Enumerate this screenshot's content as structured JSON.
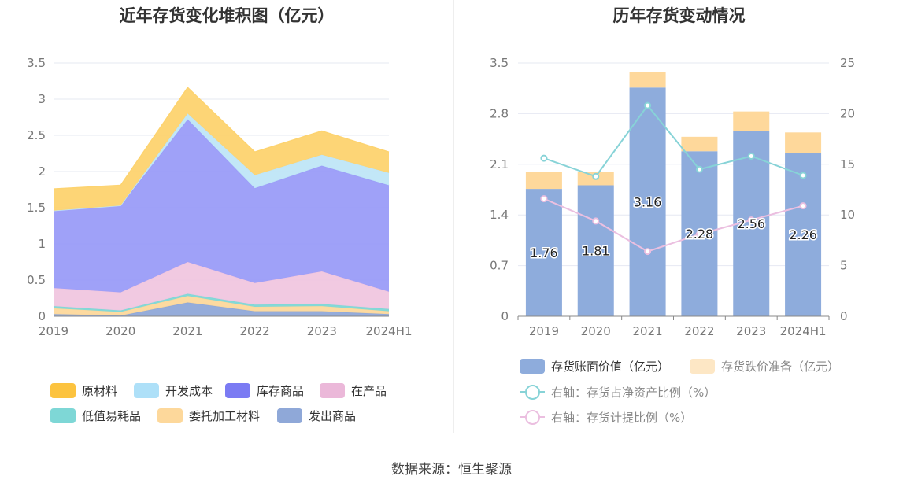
{
  "source_text": "数据来源：恒生聚源",
  "chart_data": [
    {
      "type": "area",
      "stacked": true,
      "title": "近年存货变化堆积图（亿元）",
      "categories": [
        "2019",
        "2020",
        "2021",
        "2022",
        "2023",
        "2024H1"
      ],
      "yticks": [
        "0",
        "0.5",
        "1",
        "1.5",
        "2",
        "2.5",
        "3",
        "3.5"
      ],
      "ylim": [
        0,
        3.5
      ],
      "grid": true,
      "legend_position": "bottom",
      "series": [
        {
          "name": "发出商品",
          "color": "#8fa8d8",
          "values": [
            0.03,
            0.01,
            0.19,
            0.07,
            0.07,
            0.03
          ]
        },
        {
          "name": "委托加工材料",
          "color": "#fdd89b",
          "values": [
            0.08,
            0.05,
            0.09,
            0.06,
            0.07,
            0.04
          ]
        },
        {
          "name": "低值易耗品",
          "color": "#7ed7d6",
          "values": [
            0.03,
            0.02,
            0.03,
            0.03,
            0.03,
            0.03
          ]
        },
        {
          "name": "在产品",
          "color": "#f0c6df",
          "values": [
            0.25,
            0.25,
            0.44,
            0.3,
            0.45,
            0.24
          ]
        },
        {
          "name": "库存商品",
          "color": "#9a9cf8",
          "values": [
            1.07,
            1.2,
            1.97,
            1.31,
            1.46,
            1.47
          ]
        },
        {
          "name": "开发成本",
          "color": "#bfe6f7",
          "values": [
            0.0,
            0.0,
            0.08,
            0.18,
            0.15,
            0.17
          ]
        },
        {
          "name": "原材料",
          "color": "#fdd36f",
          "values": [
            0.3,
            0.28,
            0.36,
            0.32,
            0.33,
            0.29
          ]
        }
      ],
      "legend": [
        {
          "name": "原材料",
          "color": "#fcc33f"
        },
        {
          "name": "开发成本",
          "color": "#aee0f8"
        },
        {
          "name": "库存商品",
          "color": "#7b7bf3"
        },
        {
          "name": "在产品",
          "color": "#ebb8d9"
        },
        {
          "name": "低值易耗品",
          "color": "#7ed7d6"
        },
        {
          "name": "委托加工材料",
          "color": "#fdd89b"
        },
        {
          "name": "发出商品",
          "color": "#8fa8d8"
        }
      ]
    },
    {
      "type": "bar",
      "stacked": true,
      "title": "历年存货变动情况",
      "categories": [
        "2019",
        "2020",
        "2021",
        "2022",
        "2023",
        "2024H1"
      ],
      "y_left_ticks": [
        "0",
        "0.7",
        "1.4",
        "2.1",
        "2.8",
        "3.5"
      ],
      "y_left_lim": [
        0,
        3.5
      ],
      "y_right_ticks": [
        "0",
        "5",
        "10",
        "15",
        "20",
        "25"
      ],
      "y_right_lim": [
        0,
        25
      ],
      "grid": true,
      "legend_position": "bottom",
      "bars": [
        {
          "name": "存货账面价值（亿元）",
          "color": "#8eacdc",
          "values": [
            1.76,
            1.81,
            3.16,
            2.28,
            2.56,
            2.26
          ],
          "labels": [
            "1.76",
            "1.81",
            "3.16",
            "2.28",
            "2.56",
            "2.26"
          ]
        },
        {
          "name": "存货跌价准备（亿元）",
          "color": "#fed89b",
          "values": [
            0.23,
            0.19,
            0.22,
            0.2,
            0.27,
            0.28
          ]
        }
      ],
      "lines": [
        {
          "name": "右轴：存货占净资产比例（%）",
          "color": "#87d3d7",
          "axis": "right",
          "values": [
            15.6,
            13.8,
            20.8,
            14.5,
            15.8,
            13.9
          ]
        },
        {
          "name": "右轴：存货计提比例（%）",
          "color": "#ebbfe0",
          "axis": "right",
          "values": [
            11.6,
            9.4,
            6.4,
            8.1,
            9.5,
            10.9
          ]
        }
      ]
    }
  ]
}
